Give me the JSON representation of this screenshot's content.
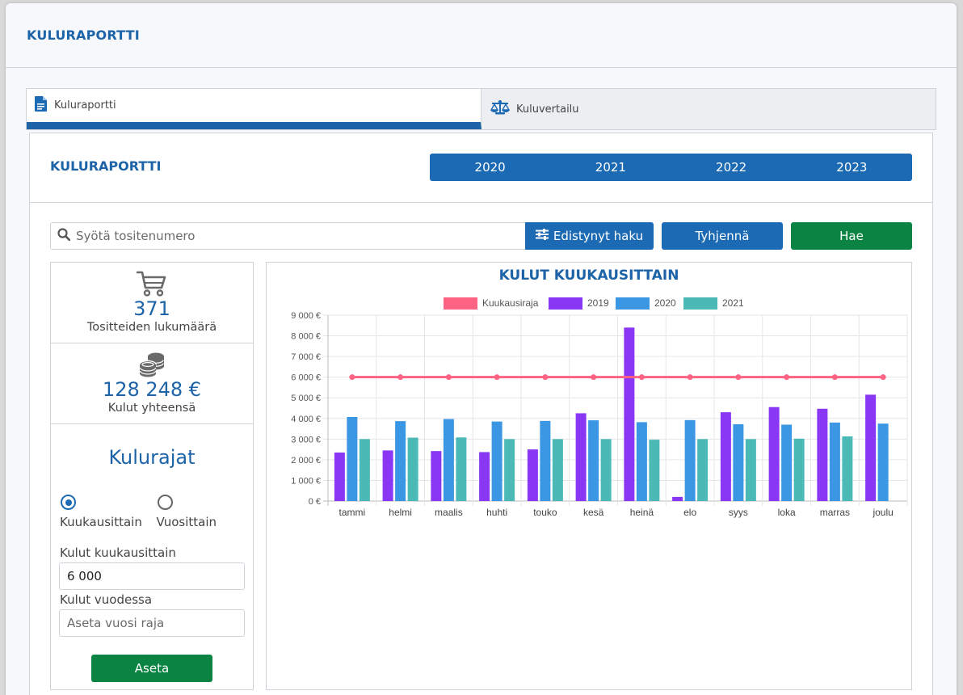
{
  "app": {
    "title": "KULURAPORTTI"
  },
  "tabs": [
    {
      "label": "Kuluraportti",
      "icon": "document-icon",
      "active": true
    },
    {
      "label": "Kuluvertailu",
      "icon": "balance-scale-icon",
      "active": false
    }
  ],
  "panel": {
    "title": "KULURAPORTTI",
    "years": [
      "2020",
      "2021",
      "2022",
      "2023"
    ]
  },
  "search": {
    "placeholder": "Syötä tositenumero",
    "advanced_label": "Edistynyt haku",
    "clear_label": "Tyhjennä",
    "search_label": "Hae"
  },
  "stats": {
    "count": {
      "value": "371",
      "label": "Tositteiden lukumäärä",
      "icon": "cart-icon"
    },
    "total": {
      "value": "128 248 €",
      "label": "Kulut yhteensä",
      "icon": "coins-icon"
    }
  },
  "limits": {
    "title": "Kulurajat",
    "options": [
      {
        "label": "Kuukausittain",
        "selected": true
      },
      {
        "label": "Vuosittain",
        "selected": false
      }
    ],
    "monthly_label": "Kulut kuukausittain",
    "monthly_value": "6 000",
    "yearly_label": "Kulut vuodessa",
    "yearly_placeholder": "Aseta vuosi raja",
    "set_label": "Aseta"
  },
  "colors": {
    "primary": "#1c6ab3",
    "success": "#0b8443",
    "title_blue": "#1c63a8"
  },
  "chart_data": {
    "type": "bar",
    "title": "KULUT KUUKAUSITTAIN",
    "categories": [
      "tammi",
      "helmi",
      "maalis",
      "huhti",
      "touko",
      "kesä",
      "heinä",
      "elo",
      "syys",
      "loka",
      "marras",
      "joulu"
    ],
    "ylim": [
      0,
      9000
    ],
    "yticks": [
      "0 €",
      "1 000 €",
      "2 000 €",
      "3 000 €",
      "4 000 €",
      "5 000 €",
      "6 000 €",
      "7 000 €",
      "8 000 €",
      "9 000 €"
    ],
    "grid": true,
    "legend_position": "top",
    "limit_line": {
      "name": "Kuukausiraja",
      "color": "#ff6384",
      "values": [
        6000,
        6000,
        6000,
        6000,
        6000,
        6000,
        6000,
        6000,
        6000,
        6000,
        6000,
        6000
      ]
    },
    "series": [
      {
        "name": "2019",
        "color": "#8a36f5",
        "values": [
          2350,
          2450,
          2420,
          2370,
          2500,
          4250,
          8400,
          200,
          4300,
          4550,
          4470,
          5150
        ]
      },
      {
        "name": "2020",
        "color": "#3b97e3",
        "values": [
          4070,
          3870,
          3970,
          3850,
          3880,
          3910,
          3820,
          3920,
          3720,
          3700,
          3800,
          3750
        ]
      },
      {
        "name": "2021",
        "color": "#4bbab6",
        "values": [
          3000,
          3070,
          3080,
          3000,
          3000,
          3000,
          2970,
          3000,
          3000,
          3020,
          3130,
          null
        ]
      }
    ]
  }
}
